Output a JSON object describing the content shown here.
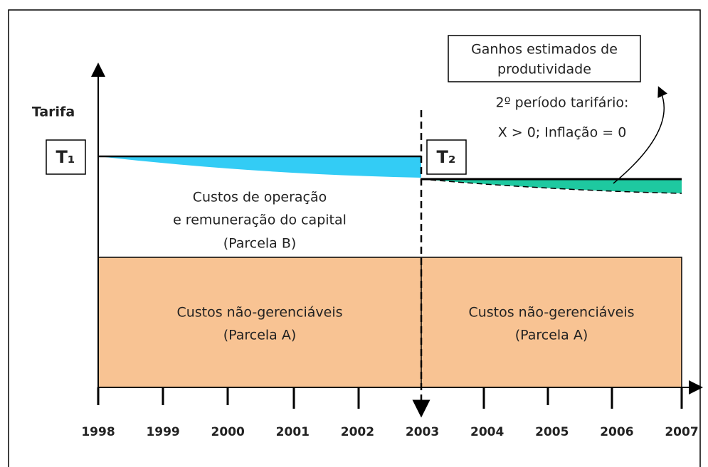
{
  "labels": {
    "y_axis": "Tarifa",
    "t1": "T₁",
    "t2": "T₂",
    "gains_box": [
      "Ganhos estimados de",
      "produtividade"
    ],
    "period_note": [
      "2º período tarifário:",
      "X > 0; Inflação = 0"
    ],
    "parcela_b": [
      "Custos de operação",
      "e remuneração do capital",
      "(Parcela B)"
    ],
    "parcela_a_left": [
      "Custos não-gerenciáveis",
      "(Parcela A)"
    ],
    "parcela_a_right": [
      "Custos não-gerenciáveis",
      "(Parcela A)"
    ]
  },
  "years": [
    "1998",
    "1999",
    "2000",
    "2001",
    "2002",
    "2003",
    "2004",
    "2005",
    "2006",
    "2007"
  ]
}
